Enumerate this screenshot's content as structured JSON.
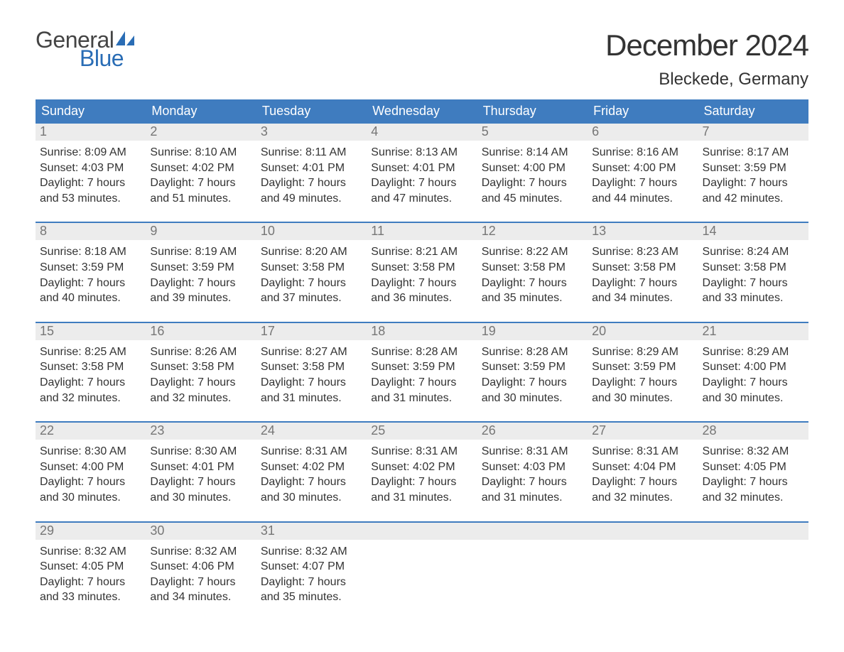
{
  "brand": {
    "word1": "General",
    "word2": "Blue",
    "word1_color": "#444444",
    "word2_color": "#2a6db5",
    "sail_color": "#2a6db5"
  },
  "title": "December 2024",
  "location": "Bleckede, Germany",
  "colors": {
    "header_bg": "#3f7cbf",
    "header_text": "#ffffff",
    "daynum_bg": "#ececec",
    "daynum_text": "#767676",
    "body_text": "#333333",
    "week_border": "#3f7cbf",
    "page_bg": "#ffffff"
  },
  "typography": {
    "title_fontsize": 42,
    "location_fontsize": 24,
    "header_fontsize": 18,
    "daynum_fontsize": 18,
    "body_fontsize": 16
  },
  "day_labels": [
    "Sunday",
    "Monday",
    "Tuesday",
    "Wednesday",
    "Thursday",
    "Friday",
    "Saturday"
  ],
  "weeks": [
    [
      {
        "n": "1",
        "sunrise": "8:09 AM",
        "sunset": "4:03 PM",
        "daylight": "7 hours and 53 minutes."
      },
      {
        "n": "2",
        "sunrise": "8:10 AM",
        "sunset": "4:02 PM",
        "daylight": "7 hours and 51 minutes."
      },
      {
        "n": "3",
        "sunrise": "8:11 AM",
        "sunset": "4:01 PM",
        "daylight": "7 hours and 49 minutes."
      },
      {
        "n": "4",
        "sunrise": "8:13 AM",
        "sunset": "4:01 PM",
        "daylight": "7 hours and 47 minutes."
      },
      {
        "n": "5",
        "sunrise": "8:14 AM",
        "sunset": "4:00 PM",
        "daylight": "7 hours and 45 minutes."
      },
      {
        "n": "6",
        "sunrise": "8:16 AM",
        "sunset": "4:00 PM",
        "daylight": "7 hours and 44 minutes."
      },
      {
        "n": "7",
        "sunrise": "8:17 AM",
        "sunset": "3:59 PM",
        "daylight": "7 hours and 42 minutes."
      }
    ],
    [
      {
        "n": "8",
        "sunrise": "8:18 AM",
        "sunset": "3:59 PM",
        "daylight": "7 hours and 40 minutes."
      },
      {
        "n": "9",
        "sunrise": "8:19 AM",
        "sunset": "3:59 PM",
        "daylight": "7 hours and 39 minutes."
      },
      {
        "n": "10",
        "sunrise": "8:20 AM",
        "sunset": "3:58 PM",
        "daylight": "7 hours and 37 minutes."
      },
      {
        "n": "11",
        "sunrise": "8:21 AM",
        "sunset": "3:58 PM",
        "daylight": "7 hours and 36 minutes."
      },
      {
        "n": "12",
        "sunrise": "8:22 AM",
        "sunset": "3:58 PM",
        "daylight": "7 hours and 35 minutes."
      },
      {
        "n": "13",
        "sunrise": "8:23 AM",
        "sunset": "3:58 PM",
        "daylight": "7 hours and 34 minutes."
      },
      {
        "n": "14",
        "sunrise": "8:24 AM",
        "sunset": "3:58 PM",
        "daylight": "7 hours and 33 minutes."
      }
    ],
    [
      {
        "n": "15",
        "sunrise": "8:25 AM",
        "sunset": "3:58 PM",
        "daylight": "7 hours and 32 minutes."
      },
      {
        "n": "16",
        "sunrise": "8:26 AM",
        "sunset": "3:58 PM",
        "daylight": "7 hours and 32 minutes."
      },
      {
        "n": "17",
        "sunrise": "8:27 AM",
        "sunset": "3:58 PM",
        "daylight": "7 hours and 31 minutes."
      },
      {
        "n": "18",
        "sunrise": "8:28 AM",
        "sunset": "3:59 PM",
        "daylight": "7 hours and 31 minutes."
      },
      {
        "n": "19",
        "sunrise": "8:28 AM",
        "sunset": "3:59 PM",
        "daylight": "7 hours and 30 minutes."
      },
      {
        "n": "20",
        "sunrise": "8:29 AM",
        "sunset": "3:59 PM",
        "daylight": "7 hours and 30 minutes."
      },
      {
        "n": "21",
        "sunrise": "8:29 AM",
        "sunset": "4:00 PM",
        "daylight": "7 hours and 30 minutes."
      }
    ],
    [
      {
        "n": "22",
        "sunrise": "8:30 AM",
        "sunset": "4:00 PM",
        "daylight": "7 hours and 30 minutes."
      },
      {
        "n": "23",
        "sunrise": "8:30 AM",
        "sunset": "4:01 PM",
        "daylight": "7 hours and 30 minutes."
      },
      {
        "n": "24",
        "sunrise": "8:31 AM",
        "sunset": "4:02 PM",
        "daylight": "7 hours and 30 minutes."
      },
      {
        "n": "25",
        "sunrise": "8:31 AM",
        "sunset": "4:02 PM",
        "daylight": "7 hours and 31 minutes."
      },
      {
        "n": "26",
        "sunrise": "8:31 AM",
        "sunset": "4:03 PM",
        "daylight": "7 hours and 31 minutes."
      },
      {
        "n": "27",
        "sunrise": "8:31 AM",
        "sunset": "4:04 PM",
        "daylight": "7 hours and 32 minutes."
      },
      {
        "n": "28",
        "sunrise": "8:32 AM",
        "sunset": "4:05 PM",
        "daylight": "7 hours and 32 minutes."
      }
    ],
    [
      {
        "n": "29",
        "sunrise": "8:32 AM",
        "sunset": "4:05 PM",
        "daylight": "7 hours and 33 minutes."
      },
      {
        "n": "30",
        "sunrise": "8:32 AM",
        "sunset": "4:06 PM",
        "daylight": "7 hours and 34 minutes."
      },
      {
        "n": "31",
        "sunrise": "8:32 AM",
        "sunset": "4:07 PM",
        "daylight": "7 hours and 35 minutes."
      },
      {
        "empty": true
      },
      {
        "empty": true
      },
      {
        "empty": true
      },
      {
        "empty": true
      }
    ]
  ],
  "labels": {
    "sunrise_prefix": "Sunrise: ",
    "sunset_prefix": "Sunset: ",
    "daylight_prefix": "Daylight: "
  }
}
